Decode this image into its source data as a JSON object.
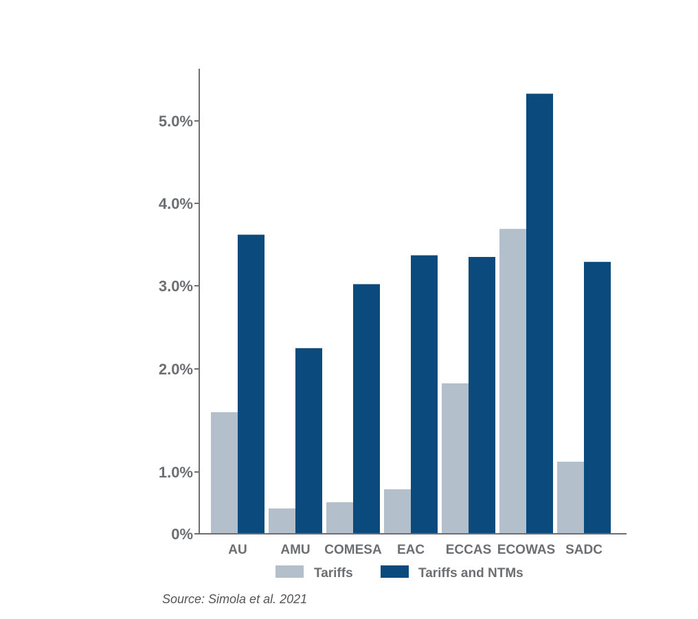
{
  "source": "Source: Simola et al. 2021",
  "colors": {
    "tariffs": "#b3bfca",
    "tariffs_ntms": "#0a4a7c",
    "axis": "#6d6e71",
    "text": "#6d6e71"
  },
  "chart_data": {
    "type": "bar",
    "categories": [
      "AU",
      "AMU",
      "COMESA",
      "EAC",
      "ECCAS",
      "ECOWAS",
      "SADC"
    ],
    "series": [
      {
        "name": "Tariffs",
        "values": [
          1.58,
          0.41,
          0.51,
          0.72,
          1.86,
          3.69,
          1.1
        ]
      },
      {
        "name": "Tariffs and NTMs",
        "values": [
          3.62,
          2.25,
          3.02,
          3.37,
          3.35,
          5.33,
          3.29
        ]
      }
    ],
    "yticks": [
      {
        "value": 0,
        "label": "0%"
      },
      {
        "value": 1,
        "label": "1.0%"
      },
      {
        "value": 2,
        "label": "2.0%"
      },
      {
        "value": 3,
        "label": "3.0%"
      },
      {
        "value": 4,
        "label": "4.0%"
      },
      {
        "value": 5,
        "label": "5.0%"
      }
    ],
    "ylim": [
      0,
      5.6
    ],
    "legend_position": "bottom",
    "grid": false
  }
}
